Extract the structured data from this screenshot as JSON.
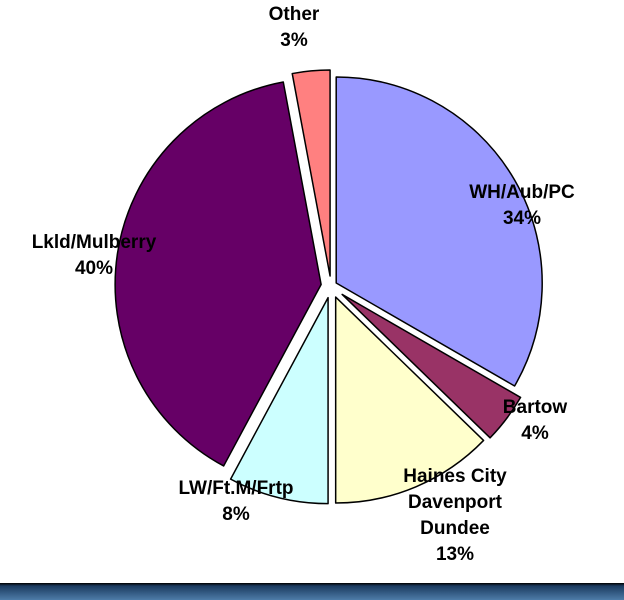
{
  "chart_data": {
    "type": "pie",
    "title": "",
    "slices": [
      {
        "label_lines": [
          "WH/Aub/PC",
          "34%"
        ],
        "value": 34,
        "color": "#9999ff"
      },
      {
        "label_lines": [
          "Bartow",
          "4%"
        ],
        "value": 4,
        "color": "#993366"
      },
      {
        "label_lines": [
          "Haines City",
          "Davenport",
          "Dundee",
          "13%"
        ],
        "value": 13,
        "color": "#ffffcc"
      },
      {
        "label_lines": [
          "LW/Ft.M/Frtp",
          "8%"
        ],
        "value": 8,
        "color": "#ccffff"
      },
      {
        "label_lines": [
          "Lkld/Mulberry",
          "40%"
        ],
        "value": 40,
        "color": "#660066"
      },
      {
        "label_lines": [
          "Other",
          "3%"
        ],
        "value": 3,
        "color": "#ff8080"
      }
    ],
    "start_angle_deg": 0,
    "direction": "clockwise",
    "exploded": true,
    "legend": "none"
  },
  "colors": {
    "background": "#ffffff",
    "slice_outline": "#000000",
    "bottom_bar": "#4e7ca8"
  }
}
